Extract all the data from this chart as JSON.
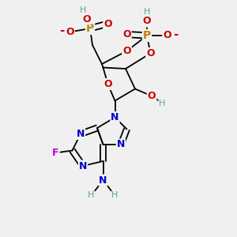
{
  "background_color": "#f0f0f0",
  "fig_size": [
    3.0,
    3.0
  ],
  "dpi": 100,
  "xlim": [
    0,
    10
  ],
  "ylim": [
    0,
    10
  ]
}
